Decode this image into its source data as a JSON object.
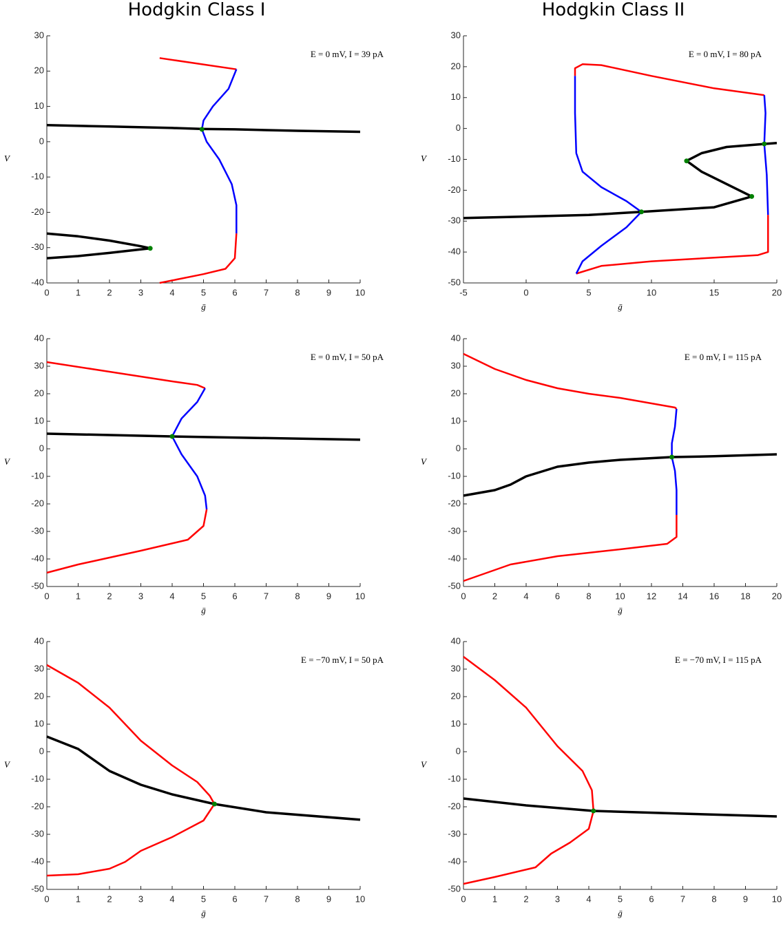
{
  "chart_data": [
    {
      "type": "line",
      "title": "Hodgkin Class I",
      "annotation": "E = 0 mV, I = 39 pA",
      "xlabel": "ḡ",
      "ylabel": "V",
      "xlim": [
        0,
        10
      ],
      "xticks": [
        0,
        1,
        2,
        3,
        4,
        5,
        6,
        7,
        8,
        9,
        10
      ],
      "ylim": [
        -40,
        30
      ],
      "yticks": [
        -40,
        -30,
        -20,
        -10,
        0,
        10,
        20,
        30
      ],
      "series": [
        {
          "type": "line",
          "color": "#000000",
          "x": [
            0,
            2,
            4,
            5,
            6,
            8,
            10
          ],
          "values": [
            4.7,
            4.3,
            3.9,
            3.6,
            3.5,
            3.1,
            2.8
          ]
        },
        {
          "type": "line",
          "color": "#000000",
          "x": [
            0,
            1,
            2,
            3,
            3.3,
            3,
            2,
            1,
            0
          ],
          "values": [
            -26,
            -26.8,
            -28,
            -29.6,
            -30.2,
            -30.5,
            -31.5,
            -32.4,
            -33
          ]
        },
        {
          "type": "line",
          "color": "#ff0000",
          "x": [
            3.6,
            6.05
          ],
          "values": [
            23.7,
            20.5
          ]
        },
        {
          "type": "line",
          "color": "#0000ff",
          "x": [
            6.05,
            5.8,
            5.3,
            5.0,
            4.95,
            5.1,
            5.5,
            5.9,
            6.05,
            6.05
          ],
          "values": [
            20.5,
            15,
            10,
            6,
            3.5,
            0,
            -5,
            -12,
            -18,
            -26
          ]
        },
        {
          "type": "line",
          "color": "#ff0000",
          "x": [
            6.05,
            6.0,
            5.7,
            5,
            3.6
          ],
          "values": [
            -26,
            -33,
            -36,
            -37.5,
            -40
          ]
        },
        {
          "type": "scatter",
          "color": "#008000",
          "x": [
            4.95,
            3.3
          ],
          "values": [
            3.5,
            -30.2
          ]
        }
      ]
    },
    {
      "type": "line",
      "title": "Hodgkin Class II",
      "annotation": "E = 0 mV, I = 80 pA",
      "xlabel": "ḡ",
      "ylabel": "V",
      "xlim": [
        -5,
        20
      ],
      "xticks": [
        -5,
        0,
        5,
        10,
        15,
        20
      ],
      "ylim": [
        -50,
        30
      ],
      "yticks": [
        -50,
        -40,
        -30,
        -20,
        -10,
        0,
        10,
        20,
        30
      ],
      "series": [
        {
          "type": "line",
          "color": "#ff0000",
          "x": [
            3.9,
            3.9,
            4.5,
            6,
            10,
            15,
            19
          ],
          "values": [
            17,
            19.5,
            20.8,
            20.5,
            17,
            13,
            10.8
          ]
        },
        {
          "type": "line",
          "color": "#0000ff",
          "x": [
            19,
            19.1,
            19,
            19.2,
            19.3
          ],
          "values": [
            10.8,
            5,
            -5,
            -15,
            -28
          ]
        },
        {
          "type": "line",
          "color": "#ff0000",
          "x": [
            19.3,
            19.3,
            18.5,
            10,
            6,
            4
          ],
          "values": [
            -28,
            -40,
            -41,
            -43,
            -44.5,
            -47
          ]
        },
        {
          "type": "line",
          "color": "#0000ff",
          "x": [
            4,
            4.5,
            6,
            8,
            9.2,
            8,
            6,
            4.5,
            4,
            3.9,
            3.9
          ],
          "values": [
            -47,
            -43,
            -38,
            -32,
            -27,
            -23.5,
            -19,
            -14,
            -8,
            5,
            17
          ]
        },
        {
          "type": "line",
          "color": "#000000",
          "x": [
            -5,
            5,
            9.2,
            15,
            18,
            17,
            14,
            12.8,
            14,
            16,
            19,
            20
          ],
          "values": [
            -29,
            -28,
            -27,
            -25.5,
            -22,
            -20,
            -14,
            -10.5,
            -8,
            -6,
            -5,
            -4.7
          ]
        },
        {
          "type": "scatter",
          "color": "#008000",
          "x": [
            9.2,
            18,
            12.8,
            19
          ],
          "values": [
            -27,
            -22,
            -10.5,
            -5
          ]
        }
      ]
    },
    {
      "type": "line",
      "annotation": "E = 0 mV, I = 50 pA",
      "xlabel": "ḡ",
      "ylabel": "V",
      "xlim": [
        0,
        10
      ],
      "xticks": [
        0,
        1,
        2,
        3,
        4,
        5,
        6,
        7,
        8,
        9,
        10
      ],
      "ylim": [
        -50,
        40
      ],
      "yticks": [
        -50,
        -40,
        -30,
        -20,
        -10,
        0,
        10,
        20,
        30,
        40
      ],
      "series": [
        {
          "type": "line",
          "color": "#ff0000",
          "x": [
            0,
            2,
            4,
            4.8,
            5.05
          ],
          "values": [
            31.5,
            28,
            24.5,
            23.2,
            22
          ]
        },
        {
          "type": "line",
          "color": "#0000ff",
          "x": [
            5.05,
            4.8,
            4.3,
            4,
            4.3,
            4.8,
            5.05,
            5.1
          ],
          "values": [
            22,
            17,
            11,
            4.5,
            -2,
            -10,
            -17,
            -22
          ]
        },
        {
          "type": "line",
          "color": "#ff0000",
          "x": [
            5.1,
            5.0,
            4.5,
            3,
            1,
            0
          ],
          "values": [
            -22,
            -28,
            -33,
            -37,
            -42,
            -45
          ]
        },
        {
          "type": "line",
          "color": "#000000",
          "x": [
            0,
            4,
            10
          ],
          "values": [
            5.5,
            4.5,
            3.3
          ]
        },
        {
          "type": "scatter",
          "color": "#008000",
          "x": [
            4
          ],
          "values": [
            4.5
          ]
        }
      ]
    },
    {
      "type": "line",
      "annotation": "E = 0 mV, I = 115 pA",
      "xlabel": "ḡ",
      "ylabel": "V",
      "xlim": [
        0,
        20
      ],
      "xticks": [
        0,
        2,
        4,
        6,
        8,
        10,
        12,
        14,
        16,
        18,
        20
      ],
      "ylim": [
        -50,
        40
      ],
      "yticks": [
        -50,
        -40,
        -30,
        -20,
        -10,
        0,
        10,
        20,
        30,
        40
      ],
      "series": [
        {
          "type": "line",
          "color": "#ff0000",
          "x": [
            0,
            2,
            4,
            6,
            8,
            10,
            12,
            13.5,
            13.6
          ],
          "values": [
            34.5,
            29,
            25,
            22,
            20,
            18.5,
            16.5,
            15,
            14.5
          ]
        },
        {
          "type": "line",
          "color": "#0000ff",
          "x": [
            13.6,
            13.5,
            13.3,
            13.3,
            13.5,
            13.6,
            13.6
          ],
          "values": [
            14.5,
            8,
            2,
            -3,
            -8,
            -15,
            -24
          ]
        },
        {
          "type": "line",
          "color": "#ff0000",
          "x": [
            13.6,
            13.6,
            13,
            10,
            6,
            3,
            0
          ],
          "values": [
            -24,
            -32,
            -34.5,
            -36.5,
            -39,
            -42,
            -48
          ]
        },
        {
          "type": "line",
          "color": "#000000",
          "x": [
            0,
            2,
            3,
            4,
            6,
            8,
            10,
            13.3,
            16,
            20
          ],
          "values": [
            -17,
            -15,
            -13,
            -10,
            -6.5,
            -5,
            -4,
            -3,
            -2.7,
            -2
          ]
        },
        {
          "type": "scatter",
          "color": "#008000",
          "x": [
            13.3
          ],
          "values": [
            -3
          ]
        }
      ]
    },
    {
      "type": "line",
      "annotation": "E = −70 mV, I = 50 pA",
      "xlabel": "ḡ",
      "ylabel": "V",
      "xlim": [
        0,
        10
      ],
      "xticks": [
        0,
        1,
        2,
        3,
        4,
        5,
        6,
        7,
        8,
        9,
        10
      ],
      "ylim": [
        -50,
        40
      ],
      "yticks": [
        -50,
        -40,
        -30,
        -20,
        -10,
        0,
        10,
        20,
        30,
        40
      ],
      "series": [
        {
          "type": "line",
          "color": "#ff0000",
          "x": [
            0,
            1,
            2,
            3,
            4,
            4.8,
            5.2,
            5.35
          ],
          "values": [
            31.5,
            25,
            16,
            4,
            -5,
            -11,
            -16,
            -19
          ]
        },
        {
          "type": "line",
          "color": "#ff0000",
          "x": [
            5.35,
            5,
            4,
            3,
            2.5,
            2,
            1,
            0
          ],
          "values": [
            -19,
            -25,
            -31,
            -36,
            -40,
            -42.5,
            -44.5,
            -45
          ]
        },
        {
          "type": "line",
          "color": "#000000",
          "x": [
            0,
            1,
            2,
            3,
            4,
            5.35,
            7,
            10
          ],
          "values": [
            5.5,
            1,
            -7,
            -12,
            -15.5,
            -19,
            -22,
            -24.7
          ]
        },
        {
          "type": "scatter",
          "color": "#008000",
          "x": [
            5.35
          ],
          "values": [
            -19
          ]
        }
      ]
    },
    {
      "type": "line",
      "annotation": "E = −70 mV, I = 115 pA",
      "xlabel": "ḡ",
      "ylabel": "V",
      "xlim": [
        0,
        10
      ],
      "xticks": [
        0,
        1,
        2,
        3,
        4,
        5,
        6,
        7,
        8,
        9,
        10
      ],
      "ylim": [
        -50,
        40
      ],
      "yticks": [
        -50,
        -40,
        -30,
        -20,
        -10,
        0,
        10,
        20,
        30,
        40
      ],
      "series": [
        {
          "type": "line",
          "color": "#ff0000",
          "x": [
            0,
            1,
            2,
            3,
            3.8,
            4.1,
            4.15
          ],
          "values": [
            34.5,
            26,
            16,
            2,
            -7,
            -14,
            -21.5
          ]
        },
        {
          "type": "line",
          "color": "#ff0000",
          "x": [
            4.15,
            4,
            3.4,
            2.8,
            2.3,
            1,
            0
          ],
          "values": [
            -21.5,
            -28,
            -33,
            -37,
            -42,
            -45.5,
            -48
          ]
        },
        {
          "type": "line",
          "color": "#000000",
          "x": [
            0,
            2,
            4.15,
            7,
            10
          ],
          "values": [
            -17,
            -19.5,
            -21.5,
            -22.5,
            -23.5
          ]
        },
        {
          "type": "scatter",
          "color": "#008000",
          "x": [
            4.15
          ],
          "values": [
            -21.5
          ]
        }
      ]
    }
  ]
}
